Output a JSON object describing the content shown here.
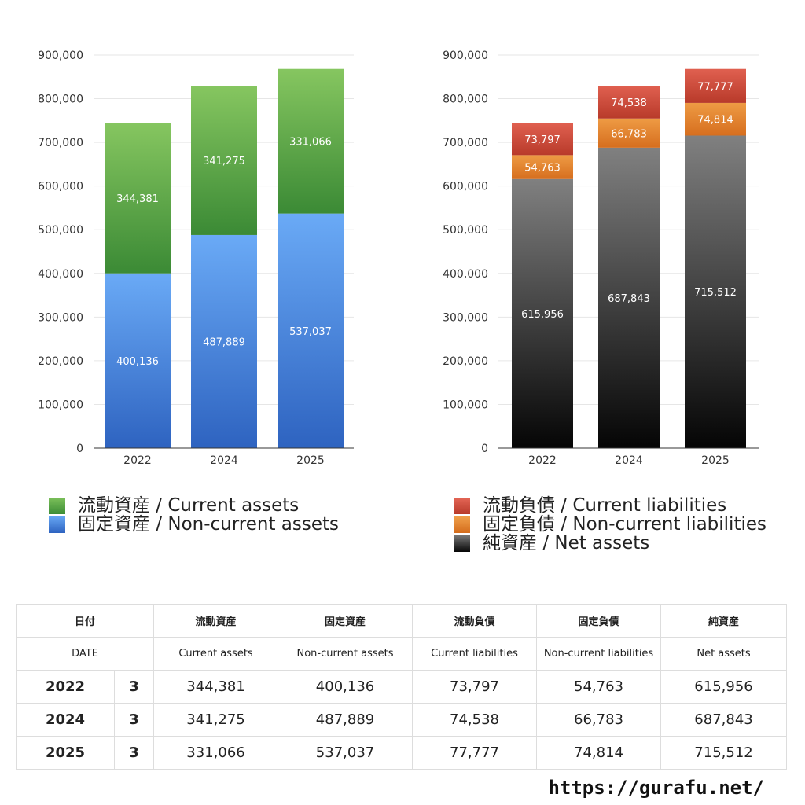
{
  "chart_data": [
    {
      "type": "bar",
      "stacked": true,
      "categories": [
        "2022",
        "2024",
        "2025"
      ],
      "ylim": [
        0,
        900000
      ],
      "yticks": [
        "0",
        "100,000",
        "200,000",
        "300,000",
        "400,000",
        "500,000",
        "600,000",
        "700,000",
        "800,000",
        "900,000"
      ],
      "grid": true,
      "legend_position": "bottom",
      "series": [
        {
          "name": "固定資産 / Non-current assets",
          "values": [
            400136,
            487889,
            537037
          ],
          "labels": [
            "400,136",
            "487,889",
            "537,037"
          ],
          "color_top": "#6aaaf6",
          "color_bottom": "#2e63c0"
        },
        {
          "name": "流動資産 / Current assets",
          "values": [
            344381,
            341275,
            331066
          ],
          "labels": [
            "344,381",
            "341,275",
            "331,066"
          ],
          "color_top": "#86c660",
          "color_bottom": "#3b8a35"
        }
      ]
    },
    {
      "type": "bar",
      "stacked": true,
      "categories": [
        "2022",
        "2024",
        "2025"
      ],
      "ylim": [
        0,
        900000
      ],
      "yticks": [
        "0",
        "100,000",
        "200,000",
        "300,000",
        "400,000",
        "500,000",
        "600,000",
        "700,000",
        "800,000",
        "900,000"
      ],
      "grid": true,
      "legend_position": "bottom",
      "series": [
        {
          "name": "純資産 / Net assets",
          "values": [
            615956,
            687843,
            715512
          ],
          "labels": [
            "615,956",
            "687,843",
            "715,512"
          ],
          "color_top": "#808080",
          "color_bottom": "#050505"
        },
        {
          "name": "固定負債 / Non-current liabilities",
          "values": [
            54763,
            66783,
            74814
          ],
          "labels": [
            "54,763",
            "66,783",
            "74,814"
          ],
          "color_top": "#ee9b44",
          "color_bottom": "#d66e1e"
        },
        {
          "name": "流動負債 / Current liabilities",
          "values": [
            73797,
            74538,
            77777
          ],
          "labels": [
            "73,797",
            "74,538",
            "77,777"
          ],
          "color_top": "#e06050",
          "color_bottom": "#b83a2a"
        }
      ]
    }
  ],
  "legend_left": [
    {
      "label": "流動資産 / Current assets",
      "color": "#52a33e"
    },
    {
      "label": "固定資産 / Non-current assets",
      "color": "#4a85dc"
    }
  ],
  "legend_right": [
    {
      "label": "流動負債 / Current liabilities",
      "color": "#c94a3a"
    },
    {
      "label": "固定負債 / Non-current liabilities",
      "color": "#e4812e"
    },
    {
      "label": "純資産 / Net assets",
      "color": "#333333"
    }
  ],
  "table": {
    "header_jp": [
      "日付",
      "",
      "流動資産",
      "固定資産",
      "流動負債",
      "固定負債",
      "純資産"
    ],
    "header_en": [
      "DATE",
      "",
      "Current assets",
      "Non-current assets",
      "Current liabilities",
      "Non-current liabilities",
      "Net assets"
    ],
    "rows": [
      [
        "2022",
        "3",
        "344,381",
        "400,136",
        "73,797",
        "54,763",
        "615,956"
      ],
      [
        "2024",
        "3",
        "341,275",
        "487,889",
        "74,538",
        "66,783",
        "687,843"
      ],
      [
        "2025",
        "3",
        "331,066",
        "537,037",
        "77,777",
        "74,814",
        "715,512"
      ]
    ]
  },
  "footer": {
    "url": "https://gurafu.net/"
  }
}
